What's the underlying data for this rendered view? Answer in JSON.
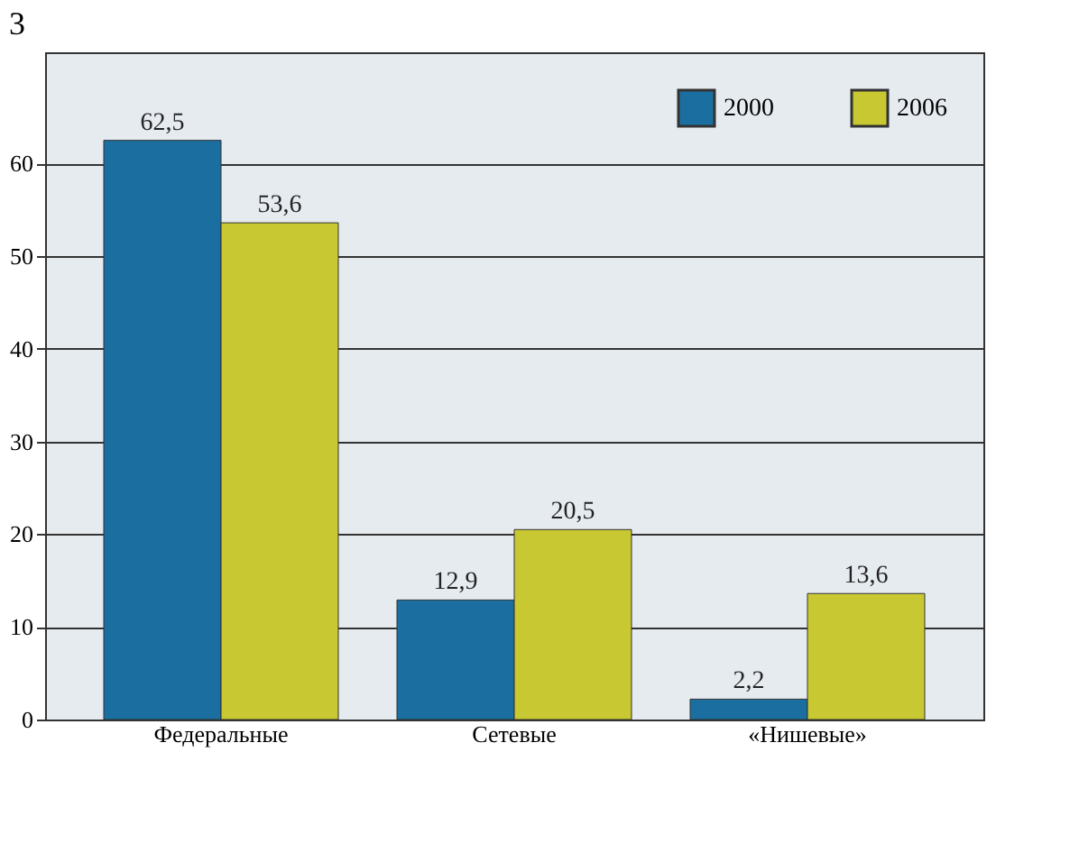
{
  "chart_data": {
    "type": "bar",
    "title": "3",
    "categories": [
      "Федеральные",
      "Сетевые",
      "«Нишевые»"
    ],
    "series": [
      {
        "name": "2000",
        "color": "#1a6fa0",
        "values": [
          62.5,
          12.9,
          2.2
        ],
        "value_labels": [
          "62,5",
          "12,9",
          "2,2"
        ]
      },
      {
        "name": "2006",
        "color": "#c8c832",
        "values": [
          53.6,
          20.5,
          13.6
        ],
        "value_labels": [
          "53,6",
          "20,5",
          "13,6"
        ]
      }
    ],
    "ylim": [
      0,
      72
    ],
    "yticks": [
      0,
      10,
      20,
      30,
      40,
      50,
      60
    ],
    "grid": "y",
    "legend": "top right"
  }
}
